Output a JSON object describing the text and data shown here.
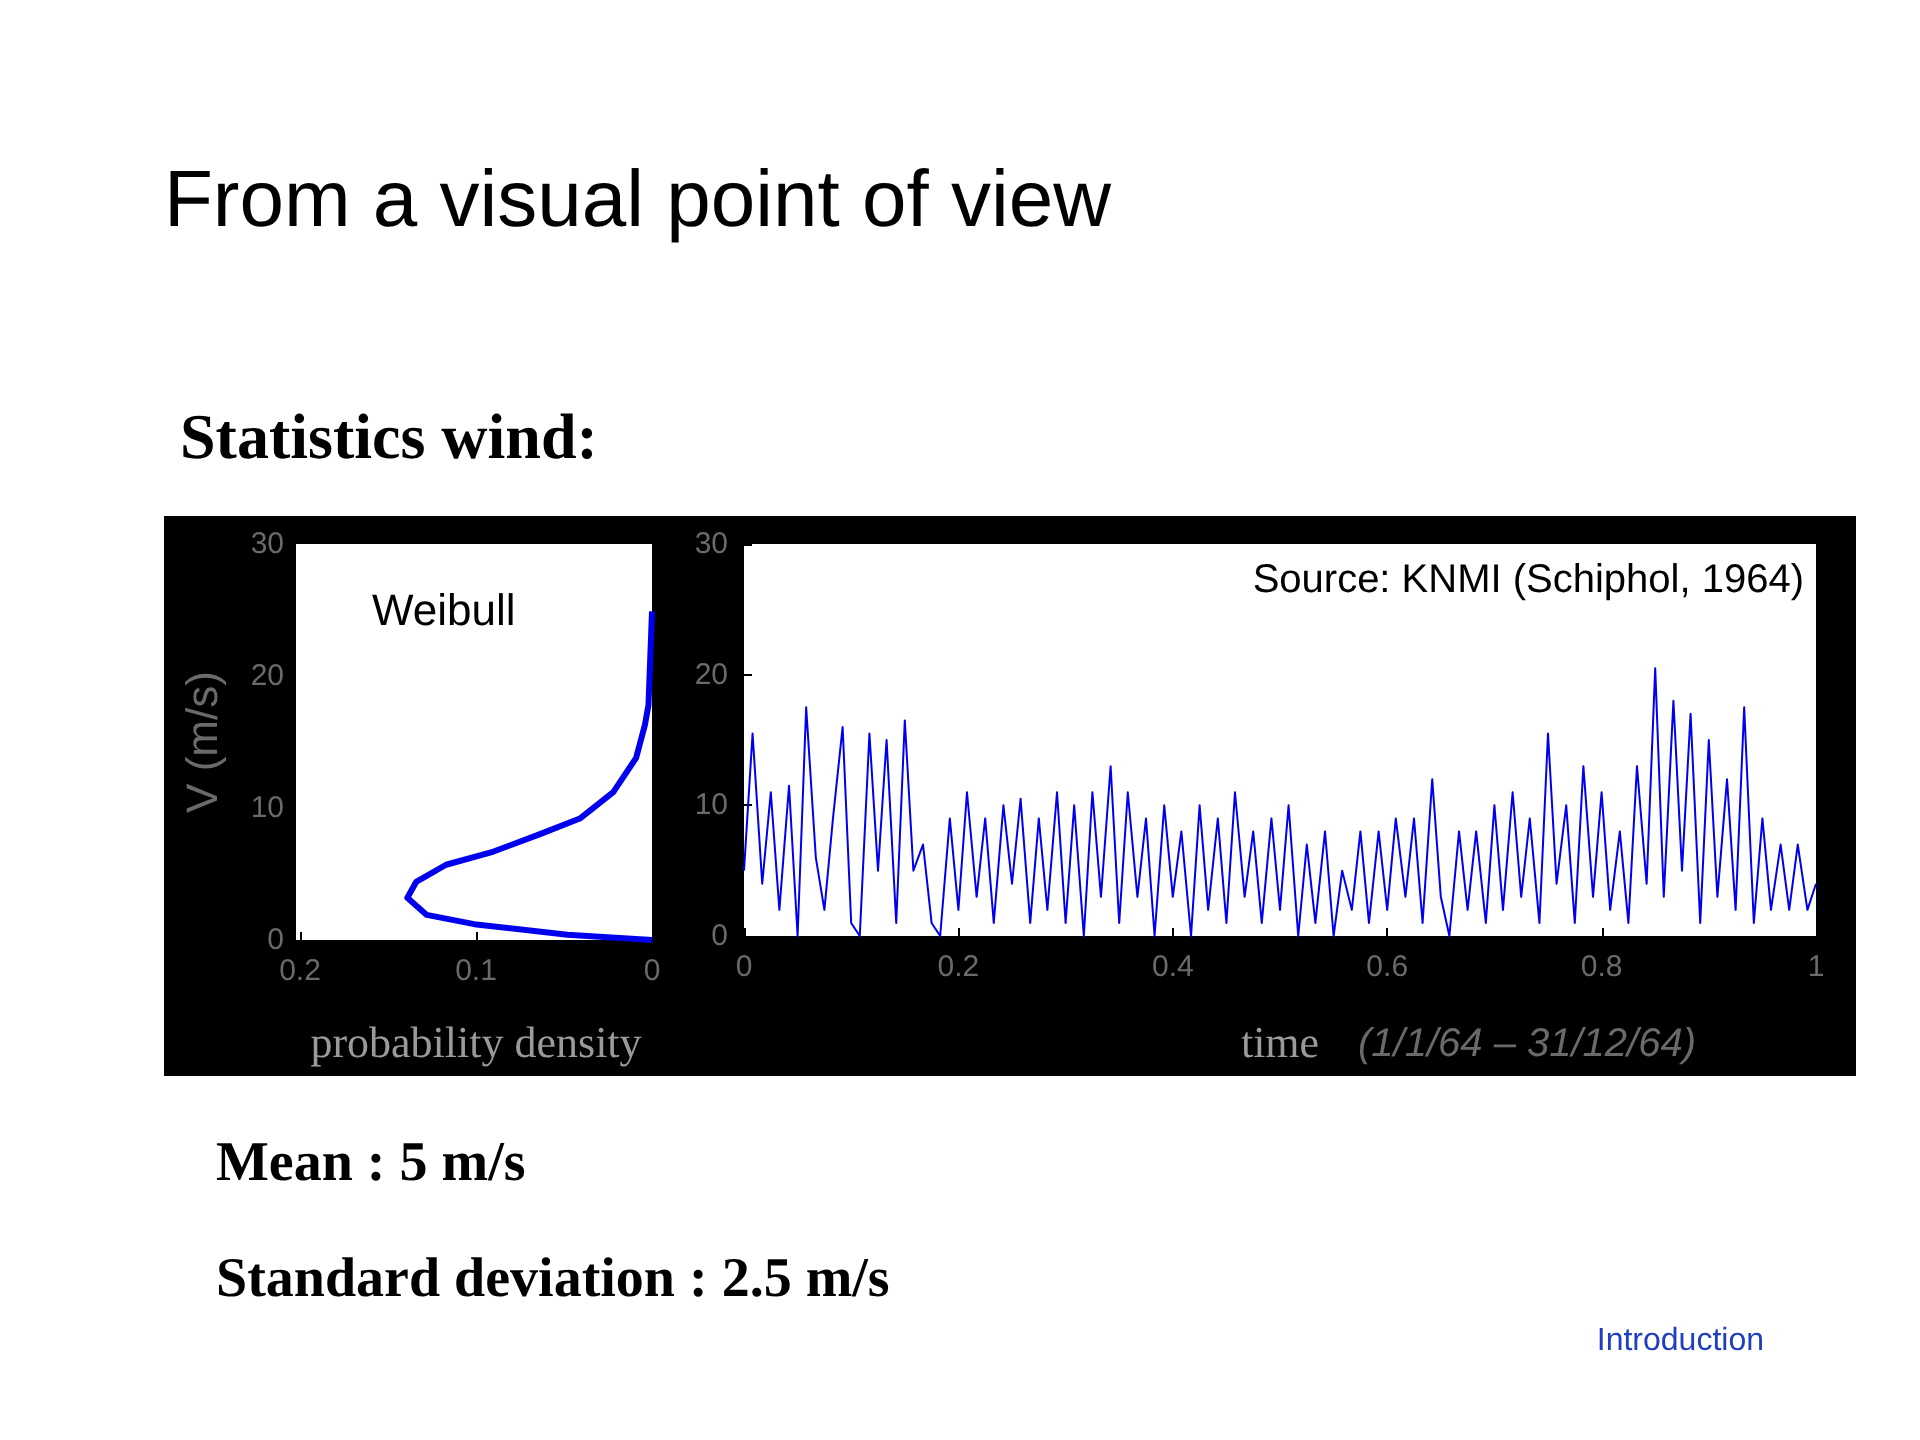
{
  "chart_data": [
    {
      "type": "line",
      "title": "From a visual point of view",
      "subtitle": "Statistics wind:",
      "xlabel": "probability density",
      "ylabel": "V (m/s)",
      "annotations": [
        "Weibull"
      ],
      "xlim": [
        0.2,
        0
      ],
      "xticks": [
        0.2,
        0.1,
        0
      ],
      "ylim": [
        0,
        30
      ],
      "yticks": [
        0,
        10,
        20,
        30
      ],
      "series": [
        {
          "color": "#0000ee",
          "x": [
            0,
            0.048,
            0.101,
            0.128,
            0.139,
            0.134,
            0.117,
            0.09,
            0.064,
            0.041,
            0.022,
            0.009,
            0.004,
            0.002,
            0
          ],
          "values": [
            0,
            0.4,
            1.2,
            1.9,
            3.2,
            4.4,
            5.7,
            6.7,
            8.0,
            9.2,
            11.2,
            13.8,
            16.3,
            17.8,
            24.9
          ]
        }
      ]
    },
    {
      "type": "line",
      "xlabel": "time",
      "annotations": [
        "Source: KNMI (Schiphol, 1964)",
        "(1/1/64 – 31/12/64)",
        "Mean : 5 m/s",
        "Standard deviation : 2.5 m/s",
        "Introduction"
      ],
      "xlim": [
        0,
        1
      ],
      "xticks": [
        0,
        0.2,
        0.4,
        0.6,
        0.8,
        1
      ],
      "ylim": [
        0,
        30
      ],
      "yticks": [
        0,
        10,
        20,
        30
      ],
      "series": [
        {
          "color": "#0000ee",
          "x": [
            0,
            0.008,
            0.017,
            0.025,
            0.033,
            0.042,
            0.05,
            0.058,
            0.067,
            0.075,
            0.083,
            0.092,
            0.1,
            0.108,
            0.117,
            0.125,
            0.133,
            0.142,
            0.15,
            0.158,
            0.167,
            0.175,
            0.183,
            0.192,
            0.2,
            0.208,
            0.217,
            0.225,
            0.233,
            0.242,
            0.25,
            0.258,
            0.267,
            0.275,
            0.283,
            0.292,
            0.3,
            0.308,
            0.317,
            0.325,
            0.333,
            0.342,
            0.35,
            0.358,
            0.367,
            0.375,
            0.383,
            0.392,
            0.4,
            0.408,
            0.417,
            0.425,
            0.433,
            0.442,
            0.45,
            0.458,
            0.467,
            0.475,
            0.483,
            0.492,
            0.5,
            0.508,
            0.517,
            0.525,
            0.533,
            0.542,
            0.55,
            0.558,
            0.567,
            0.575,
            0.583,
            0.592,
            0.6,
            0.608,
            0.617,
            0.625,
            0.633,
            0.642,
            0.65,
            0.658,
            0.667,
            0.675,
            0.683,
            0.692,
            0.7,
            0.708,
            0.717,
            0.725,
            0.733,
            0.742,
            0.75,
            0.758,
            0.767,
            0.775,
            0.783,
            0.792,
            0.8,
            0.808,
            0.817,
            0.825,
            0.833,
            0.842,
            0.85,
            0.858,
            0.867,
            0.875,
            0.883,
            0.892,
            0.9,
            0.908,
            0.917,
            0.925,
            0.933,
            0.942,
            0.95,
            0.958,
            0.967,
            0.975,
            0.983,
            0.992,
            1
          ],
          "values": [
            5,
            15.5,
            4,
            11,
            2,
            11.5,
            0,
            17.5,
            6,
            2,
            9,
            16,
            1,
            0,
            15.5,
            5,
            15,
            1,
            16.5,
            5,
            7,
            1,
            0,
            9,
            2,
            11,
            3,
            9,
            1,
            10,
            4,
            10.5,
            1,
            9,
            2,
            11,
            1,
            10,
            0,
            11,
            3,
            13,
            1,
            11,
            3,
            9,
            0,
            10,
            3,
            8,
            0,
            10,
            2,
            9,
            1,
            11,
            3,
            8,
            1,
            9,
            2,
            10,
            0,
            7,
            1,
            8,
            0,
            5,
            2,
            8,
            1,
            8,
            2,
            9,
            3,
            9,
            1,
            12,
            3,
            0,
            8,
            2,
            8,
            1,
            10,
            2,
            11,
            3,
            9,
            1,
            15.5,
            4,
            10,
            1,
            13,
            3,
            11,
            2,
            8,
            1,
            13,
            4,
            20.5,
            3,
            18,
            5,
            17,
            1,
            15,
            3,
            12,
            2,
            17.5,
            1,
            9,
            2,
            7,
            2,
            7,
            2,
            4
          ]
        }
      ]
    }
  ]
}
